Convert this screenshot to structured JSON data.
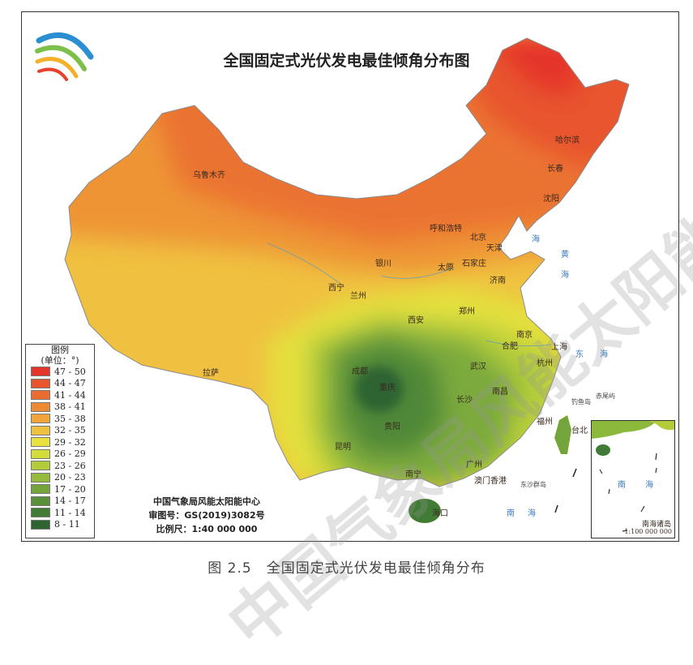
{
  "title": "全国固定式光伏发电最佳倾角分布图",
  "caption": "图 2.5　全国固定式光伏发电最佳倾角分布",
  "legend": {
    "title": "图例",
    "unit": "(单位：°)",
    "items": [
      {
        "label": "47 - 50",
        "color": "#e5352a"
      },
      {
        "label": "44 - 47",
        "color": "#e8552d"
      },
      {
        "label": "41 - 44",
        "color": "#eb6c30"
      },
      {
        "label": "38 - 41",
        "color": "#ee8a34"
      },
      {
        "label": "35 - 38",
        "color": "#f2a43a"
      },
      {
        "label": "32 - 35",
        "color": "#f0c040"
      },
      {
        "label": "29 - 32",
        "color": "#e9e23c"
      },
      {
        "label": "26 - 29",
        "color": "#d2dc3a"
      },
      {
        "label": "23 - 26",
        "color": "#b2cc3a"
      },
      {
        "label": "20 - 23",
        "color": "#95ba3c"
      },
      {
        "label": "17 - 20",
        "color": "#74a43c"
      },
      {
        "label": "14 - 17",
        "color": "#5a9039"
      },
      {
        "label": "11 - 14",
        "color": "#417c36"
      },
      {
        "label": "8 - 11",
        "color": "#2e6432"
      }
    ]
  },
  "credits": {
    "org": "中国气象局风能太阳能中心",
    "approval": "审图号：GS(2019)3082号",
    "scale": "比例尺：1:40 000 000"
  },
  "inset": {
    "title": "南海诸岛",
    "scale": "1:100 000 000",
    "sea1": "南",
    "sea2": "海"
  },
  "cities": [
    "哈尔滨",
    "长春",
    "沈阳",
    "乌鲁木齐",
    "呼和浩特",
    "北京",
    "天津",
    "银川",
    "太原",
    "石家庄",
    "济南",
    "西宁",
    "兰州",
    "西安",
    "郑州",
    "南京",
    "上海",
    "合肥",
    "杭州",
    "武汉",
    "成都",
    "重庆",
    "拉萨",
    "长沙",
    "南昌",
    "贵阳",
    "福州",
    "台北",
    "昆明",
    "广州",
    "南宁",
    "澳门香港",
    "海口"
  ],
  "islands": [
    "钓鱼岛",
    "赤尾屿",
    "东沙群岛"
  ],
  "seas": {
    "bohai": "海",
    "huang1": "黄",
    "huang2": "海",
    "dong1": "东",
    "dong2": "海",
    "nan1": "南",
    "nan2": "海"
  },
  "watermark": "中国气象局风能太阳能中心"
}
